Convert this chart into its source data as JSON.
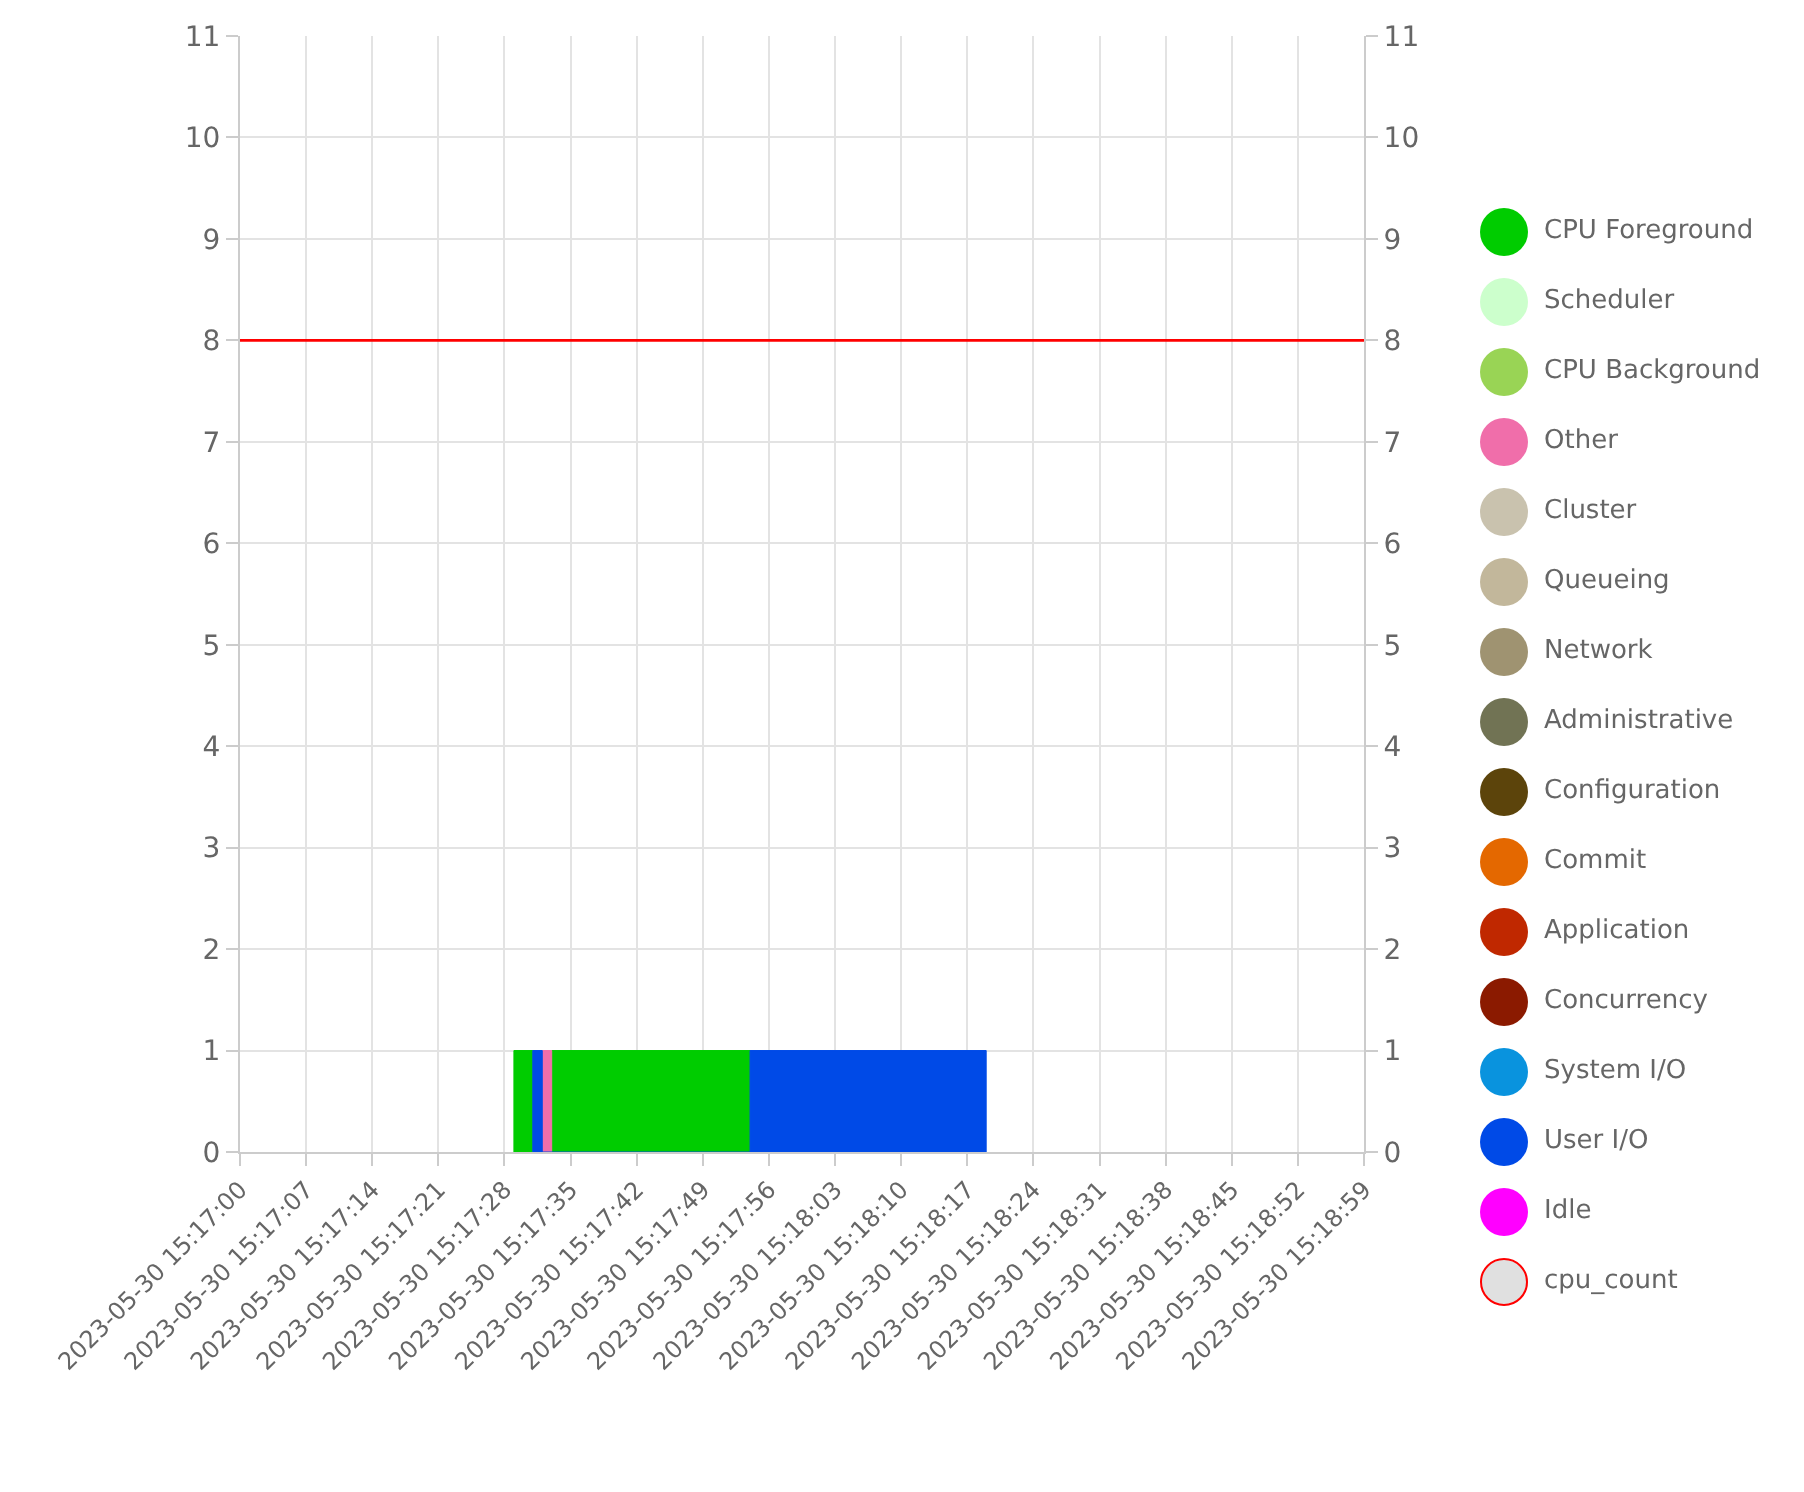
{
  "chart_data": {
    "type": "area",
    "grid": true,
    "legend": "right",
    "xlim": [
      "2023-05-30T15:17:00",
      "2023-05-30T15:18:59"
    ],
    "xticks": [
      {
        "value": "2023-05-30T15:17:00",
        "label": "2023-05-30 15:17:00"
      },
      {
        "value": "2023-05-30T15:17:07",
        "label": "2023-05-30 15:17:07"
      },
      {
        "value": "2023-05-30T15:17:14",
        "label": "2023-05-30 15:17:14"
      },
      {
        "value": "2023-05-30T15:17:21",
        "label": "2023-05-30 15:17:21"
      },
      {
        "value": "2023-05-30T15:17:28",
        "label": "2023-05-30 15:17:28"
      },
      {
        "value": "2023-05-30T15:17:35",
        "label": "2023-05-30 15:17:35"
      },
      {
        "value": "2023-05-30T15:17:42",
        "label": "2023-05-30 15:17:42"
      },
      {
        "value": "2023-05-30T15:17:49",
        "label": "2023-05-30 15:17:49"
      },
      {
        "value": "2023-05-30T15:17:56",
        "label": "2023-05-30 15:17:56"
      },
      {
        "value": "2023-05-30T15:18:03",
        "label": "2023-05-30 15:18:03"
      },
      {
        "value": "2023-05-30T15:18:10",
        "label": "2023-05-30 15:18:10"
      },
      {
        "value": "2023-05-30T15:18:17",
        "label": "2023-05-30 15:18:17"
      },
      {
        "value": "2023-05-30T15:18:24",
        "label": "2023-05-30 15:18:24"
      },
      {
        "value": "2023-05-30T15:18:31",
        "label": "2023-05-30 15:18:31"
      },
      {
        "value": "2023-05-30T15:18:38",
        "label": "2023-05-30 15:18:38"
      },
      {
        "value": "2023-05-30T15:18:45",
        "label": "2023-05-30 15:18:45"
      },
      {
        "value": "2023-05-30T15:18:52",
        "label": "2023-05-30 15:18:52"
      },
      {
        "value": "2023-05-30T15:18:59",
        "label": "2023-05-30 15:18:59"
      }
    ],
    "ylim": [
      0,
      11
    ],
    "yticks": [
      0,
      1,
      2,
      3,
      4,
      5,
      6,
      7,
      8,
      9,
      10,
      11
    ],
    "y2lim": [
      0,
      11
    ],
    "y2ticks": [
      0,
      1,
      2,
      3,
      4,
      5,
      6,
      7,
      8,
      9,
      10,
      11
    ],
    "series": [
      {
        "name": "CPU Foreground",
        "color": "#00cc00",
        "x": [
          "2023-05-30T15:17:29",
          "2023-05-30T15:17:29",
          "2023-05-30T15:17:31",
          "2023-05-30T15:17:31",
          "2023-05-30T15:17:33",
          "2023-05-30T15:17:33",
          "2023-05-30T15:17:54",
          "2023-05-30T15:17:54"
        ],
        "values": [
          0,
          1,
          1,
          0,
          0,
          1,
          1,
          0
        ]
      },
      {
        "name": "Scheduler",
        "color": "#ccffcc"
      },
      {
        "name": "CPU Background",
        "color": "#99d455"
      },
      {
        "name": "Other",
        "color": "#f06eaa",
        "x": [
          "2023-05-30T15:17:32",
          "2023-05-30T15:17:32",
          "2023-05-30T15:17:33",
          "2023-05-30T15:17:33"
        ],
        "values": [
          0,
          1,
          1,
          0
        ]
      },
      {
        "name": "Cluster",
        "color": "#c9c2ae"
      },
      {
        "name": "Queueing",
        "color": "#c2b79b"
      },
      {
        "name": "Network",
        "color": "#9f9371"
      },
      {
        "name": "Administrative",
        "color": "#717354"
      },
      {
        "name": "Configuration",
        "color": "#5c440b"
      },
      {
        "name": "Commit",
        "color": "#e46800"
      },
      {
        "name": "Application",
        "color": "#c02800"
      },
      {
        "name": "Concurrency",
        "color": "#8b1a00"
      },
      {
        "name": "System I/O",
        "color": "#0993de"
      },
      {
        "name": "User I/O",
        "color": "#004ae7",
        "x": [
          "2023-05-30T15:17:31",
          "2023-05-30T15:17:31",
          "2023-05-30T15:17:32",
          "2023-05-30T15:17:32",
          "2023-05-30T15:17:54",
          "2023-05-30T15:17:54",
          "2023-05-30T15:18:19",
          "2023-05-30T15:18:19"
        ],
        "values": [
          0,
          1,
          1,
          0,
          0,
          1,
          1,
          0
        ]
      },
      {
        "name": "Idle",
        "color": "#ff00ff"
      },
      {
        "name": "cpu_count",
        "color": "#ff0000",
        "type": "line",
        "x": [
          "2023-05-30T15:17:00",
          "2023-05-30T15:18:59"
        ],
        "values": [
          8,
          8
        ]
      }
    ]
  }
}
